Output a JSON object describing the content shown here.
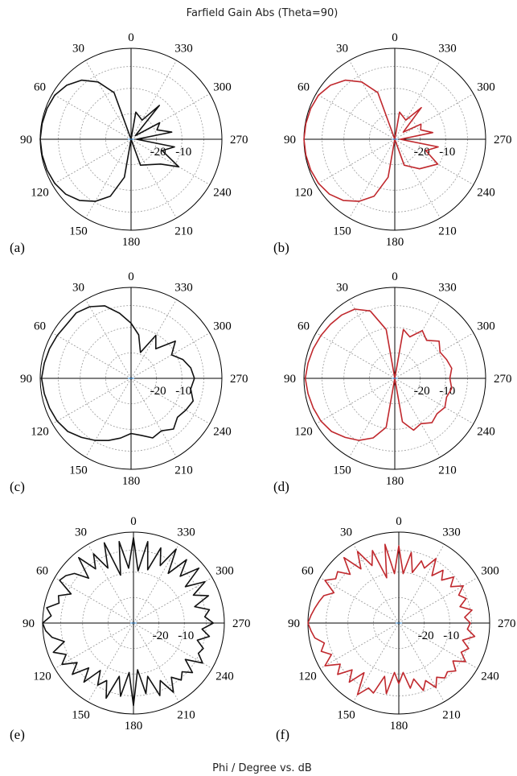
{
  "figure": {
    "title": "Farfield Gain Abs (Theta=90)",
    "footer": "Phi / Degree vs. dB"
  },
  "colors": {
    "black_trace": "#111111",
    "red_trace": "#c0282d",
    "center_mark": "#3a8fd8"
  },
  "chart_data": [
    {
      "type": "polar-line",
      "panel_label": "(a)",
      "angle_labels": [
        "0",
        "30",
        "60",
        "90",
        "120",
        "150",
        "180",
        "210",
        "240",
        "270",
        "300",
        "330"
      ],
      "radial_labels": [
        "-20",
        "-10"
      ],
      "theta_unit": "degree",
      "radius_unit": "dB",
      "series": [
        {
          "color": "#111111",
          "theta": [
            0,
            20,
            30,
            40,
            50,
            60,
            70,
            80,
            90,
            100,
            110,
            120,
            130,
            140,
            150,
            160,
            170,
            180,
            200,
            230,
            240,
            250,
            260,
            270,
            280,
            290,
            300,
            310,
            320,
            330,
            350,
            360
          ],
          "r": [
            -32,
            -14,
            -8,
            -4,
            -1.5,
            0,
            0.5,
            0.8,
            1,
            0.8,
            0.5,
            0,
            -1,
            -3,
            -6,
            -10,
            -18,
            -32,
            -22,
            -18,
            -12,
            -20,
            -16,
            -30,
            -17,
            -22,
            -20,
            -30,
            -16,
            -24,
            -22,
            -32
          ]
        }
      ]
    },
    {
      "type": "polar-line",
      "panel_label": "(b)",
      "angle_labels": [
        "0",
        "30",
        "60",
        "90",
        "120",
        "150",
        "180",
        "210",
        "240",
        "270",
        "300",
        "330"
      ],
      "radial_labels": [
        "-20",
        "-10"
      ],
      "theta_unit": "degree",
      "radius_unit": "dB",
      "series": [
        {
          "color": "#c0282d",
          "theta": [
            0,
            20,
            30,
            40,
            50,
            60,
            70,
            80,
            90,
            100,
            110,
            120,
            130,
            140,
            150,
            160,
            170,
            180,
            200,
            220,
            240,
            250,
            260,
            270,
            280,
            290,
            300,
            310,
            320,
            330,
            350,
            360
          ],
          "r": [
            -32,
            -14,
            -8,
            -4,
            -1.5,
            0,
            0.5,
            0.8,
            1,
            0.8,
            0.5,
            0,
            -1,
            -3,
            -6,
            -10,
            -18,
            -32,
            -22,
            -18,
            -14,
            -20,
            -16,
            -30,
            -18,
            -22,
            -21,
            -28,
            -17,
            -24,
            -22,
            -32
          ]
        }
      ]
    },
    {
      "type": "polar-line",
      "panel_label": "(c)",
      "angle_labels": [
        "0",
        "30",
        "60",
        "90",
        "120",
        "150",
        "180",
        "210",
        "240",
        "270",
        "300",
        "330"
      ],
      "radial_labels": [
        "-20",
        "-10"
      ],
      "theta_unit": "degree",
      "radius_unit": "dB",
      "series": [
        {
          "color": "#111111",
          "theta": [
            0,
            10,
            20,
            30,
            40,
            50,
            60,
            70,
            80,
            90,
            100,
            110,
            120,
            130,
            140,
            150,
            160,
            170,
            180,
            190,
            200,
            210,
            220,
            230,
            240,
            250,
            260,
            270,
            280,
            290,
            300,
            310,
            320,
            330,
            340,
            350,
            360
          ],
          "r": [
            -12,
            -8,
            -4,
            -2,
            -1,
            -1.5,
            -1,
            -0.5,
            0,
            0.5,
            0,
            -0.5,
            -1,
            -2,
            -4,
            -6,
            -8,
            -10,
            -12,
            -11,
            -9,
            -10,
            -8,
            -10,
            -9,
            -8,
            -10,
            -9,
            -10,
            -12,
            -15,
            -11,
            -18,
            -14,
            -22,
            -16,
            -12
          ]
        }
      ]
    },
    {
      "type": "polar-line",
      "panel_label": "(d)",
      "angle_labels": [
        "0",
        "30",
        "60",
        "90",
        "120",
        "150",
        "180",
        "210",
        "240",
        "270",
        "300",
        "330"
      ],
      "radial_labels": [
        "-20",
        "-10"
      ],
      "theta_unit": "degree",
      "radius_unit": "dB",
      "series": [
        {
          "color": "#c0282d",
          "theta": [
            0,
            10,
            20,
            30,
            40,
            50,
            60,
            70,
            80,
            90,
            100,
            110,
            120,
            130,
            140,
            150,
            160,
            170,
            180,
            190,
            200,
            210,
            220,
            230,
            240,
            250,
            260,
            270,
            280,
            290,
            300,
            310,
            320,
            330,
            340,
            350,
            360
          ],
          "r": [
            -32,
            -14,
            -6,
            -3,
            -2,
            -1.5,
            -1,
            -0.5,
            0,
            0.5,
            0,
            -0.5,
            -1,
            -2,
            -4,
            -6,
            -9,
            -14,
            -32,
            -16,
            -12,
            -13,
            -11,
            -12,
            -11,
            -12,
            -11,
            -12,
            -11,
            -12,
            -13,
            -11,
            -14,
            -12,
            -16,
            -14,
            -32
          ]
        }
      ]
    },
    {
      "type": "polar-line",
      "panel_label": "(e)",
      "angle_labels": [
        "0",
        "30",
        "60",
        "90",
        "120",
        "150",
        "180",
        "210",
        "240",
        "270",
        "300",
        "330"
      ],
      "radial_labels": [
        "-20",
        "-10"
      ],
      "theta_unit": "degree",
      "radius_unit": "dB",
      "series": [
        {
          "color": "#111111",
          "theta": [
            0,
            5,
            10,
            15,
            20,
            25,
            30,
            35,
            40,
            45,
            50,
            55,
            60,
            65,
            70,
            75,
            80,
            85,
            90,
            95,
            100,
            105,
            110,
            115,
            120,
            125,
            130,
            135,
            140,
            145,
            150,
            155,
            160,
            165,
            170,
            175,
            180,
            185,
            190,
            195,
            200,
            205,
            210,
            215,
            220,
            225,
            230,
            235,
            240,
            245,
            250,
            255,
            260,
            265,
            270,
            275,
            280,
            285,
            290,
            295,
            300,
            305,
            310,
            315,
            320,
            325,
            330,
            335,
            340,
            345,
            350,
            355,
            360
          ],
          "r": [
            -1,
            -12,
            -2,
            -14,
            -1,
            -10,
            -3,
            -8,
            -1,
            -9,
            -4,
            -2,
            -1,
            -7,
            -3,
            -4,
            0,
            -2,
            1,
            0,
            -2,
            -6,
            -1,
            -5,
            -2,
            -7,
            -3,
            -9,
            -4,
            -11,
            -6,
            -9,
            -3,
            -12,
            -5,
            -14,
            -2,
            -15,
            -6,
            -12,
            -4,
            -9,
            -3,
            -8,
            -5,
            -7,
            -4,
            -9,
            -3,
            -6,
            -5,
            -8,
            -4,
            -7,
            -3,
            -6,
            -4,
            -9,
            -3,
            -8,
            -2,
            -9,
            -1,
            -8,
            -2,
            -10,
            -1,
            -9,
            -3,
            -12,
            -2,
            -13,
            -1
          ]
        }
      ]
    },
    {
      "type": "polar-line",
      "panel_label": "(f)",
      "angle_labels": [
        "0",
        "30",
        "60",
        "90",
        "120",
        "150",
        "180",
        "210",
        "240",
        "270",
        "300",
        "330"
      ],
      "radial_labels": [
        "-20",
        "-10"
      ],
      "theta_unit": "degree",
      "radius_unit": "dB",
      "series": [
        {
          "color": "#c0282d",
          "theta": [
            0,
            5,
            10,
            15,
            20,
            25,
            30,
            35,
            40,
            45,
            50,
            55,
            60,
            65,
            70,
            75,
            80,
            85,
            90,
            95,
            100,
            105,
            110,
            115,
            120,
            125,
            130,
            135,
            140,
            145,
            150,
            155,
            160,
            165,
            170,
            175,
            180,
            185,
            190,
            195,
            200,
            205,
            210,
            215,
            220,
            225,
            230,
            235,
            240,
            245,
            250,
            255,
            260,
            265,
            270,
            275,
            280,
            285,
            290,
            295,
            300,
            305,
            310,
            315,
            320,
            325,
            330,
            335,
            340,
            345,
            350,
            355,
            360
          ],
          "r": [
            -4,
            -14,
            -3,
            -15,
            -4,
            -9,
            -2,
            -8,
            -1,
            -7,
            -3,
            -4,
            -1,
            -6,
            -3,
            -2,
            -1,
            0,
            1,
            0,
            -1,
            -4,
            -2,
            -5,
            -1,
            -6,
            -3,
            -8,
            -4,
            -10,
            -2,
            -6,
            -5,
            -12,
            -6,
            -14,
            -10,
            -14,
            -8,
            -11,
            -6,
            -9,
            -5,
            -8,
            -6,
            -7,
            -5,
            -8,
            -4,
            -7,
            -5,
            -8,
            -4,
            -7,
            -6,
            -8,
            -5,
            -9,
            -6,
            -8,
            -5,
            -9,
            -6,
            -10,
            -7,
            -11,
            -5,
            -10,
            -8,
            -13,
            -6,
            -14,
            -4
          ]
        }
      ]
    }
  ]
}
